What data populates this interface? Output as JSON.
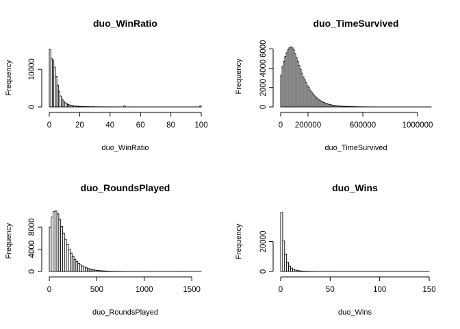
{
  "chart_data": [
    {
      "type": "bar",
      "title": "duo_WinRatio",
      "xlabel": "duo_WinRatio",
      "ylabel": "Frequency",
      "xlim": [
        0,
        100
      ],
      "ylim": [
        0,
        15500
      ],
      "xticks": [
        "0",
        "20",
        "40",
        "60",
        "80",
        "100"
      ],
      "yticks": [
        "0",
        "10000"
      ],
      "bin_width": 1,
      "values": [
        15300,
        12800,
        12500,
        10600,
        8100,
        5800,
        4200,
        2900,
        2100,
        1500,
        1100,
        820,
        640,
        500,
        400,
        320,
        260,
        210,
        170,
        140,
        120,
        100,
        90,
        80,
        70,
        60,
        55,
        50,
        45,
        40,
        36,
        32,
        30,
        28,
        25,
        22,
        20,
        18,
        16,
        15,
        14,
        13,
        12,
        11,
        10,
        10,
        9,
        9,
        8,
        260,
        8,
        7,
        7,
        6,
        6,
        6,
        5,
        5,
        5,
        5,
        5,
        4,
        4,
        4,
        4,
        4,
        4,
        4,
        3,
        3,
        3,
        3,
        3,
        3,
        3,
        3,
        3,
        3,
        3,
        3,
        3,
        3,
        3,
        3,
        3,
        3,
        3,
        3,
        3,
        3,
        3,
        3,
        3,
        3,
        3,
        3,
        3,
        3,
        3,
        280
      ]
    },
    {
      "type": "bar",
      "title": "duo_TimeSurvived",
      "xlabel": "duo_TimeSurvived",
      "ylabel": "Frequency",
      "xlim": [
        0,
        1100000
      ],
      "ylim": [
        0,
        6300
      ],
      "xticks": [
        "0",
        "200000",
        "600000",
        "1000000"
      ],
      "yticks": [
        "0",
        "2000",
        "4000",
        "6000"
      ],
      "bin_width": 10000,
      "values": [
        3300,
        4200,
        4700,
        5200,
        5600,
        5900,
        6100,
        6200,
        6100,
        5900,
        5500,
        5100,
        4700,
        4300,
        3900,
        3500,
        3100,
        2800,
        2500,
        2200,
        2000,
        1750,
        1550,
        1350,
        1200,
        1050,
        920,
        800,
        700,
        610,
        530,
        460,
        400,
        350,
        300,
        260,
        225,
        195,
        170,
        150,
        130,
        115,
        100,
        88,
        78,
        68,
        60,
        53,
        46,
        40,
        36,
        32,
        28,
        25,
        22,
        19,
        17,
        15,
        13,
        12,
        10,
        9,
        8,
        7,
        6,
        5,
        5,
        4,
        4,
        3,
        3,
        3,
        2,
        2,
        2,
        2,
        2,
        1,
        1,
        1,
        1,
        1,
        1,
        1,
        1,
        1,
        1,
        1,
        1,
        1,
        1,
        1,
        1,
        1,
        1,
        1,
        1,
        1,
        1,
        1,
        1,
        1,
        1,
        1,
        1,
        1,
        1,
        1,
        1,
        1
      ]
    },
    {
      "type": "bar",
      "title": "duo_RoundsPlayed",
      "xlabel": "duo_RoundsPlayed",
      "ylabel": "Frequency",
      "xlim": [
        0,
        1600
      ],
      "ylim": [
        0,
        11000
      ],
      "xticks": [
        "0",
        "500",
        "1000",
        "1500"
      ],
      "yticks": [
        "0",
        "4000",
        "8000"
      ],
      "bin_width": 20,
      "values": [
        8000,
        9800,
        10800,
        10900,
        10400,
        9400,
        8100,
        6900,
        5800,
        4900,
        4000,
        3300,
        2700,
        2200,
        1800,
        1450,
        1200,
        980,
        800,
        650,
        520,
        420,
        340,
        280,
        230,
        190,
        150,
        120,
        100,
        80,
        65,
        52,
        42,
        34,
        28,
        22,
        18,
        15,
        12,
        10,
        8,
        7,
        6,
        5,
        4,
        4,
        3,
        3,
        2,
        2,
        2,
        2,
        1,
        1,
        1,
        1,
        1,
        1,
        1,
        1,
        1,
        1,
        1,
        1,
        1,
        1,
        1,
        1,
        1,
        1,
        1,
        1,
        1,
        1,
        1,
        1,
        1,
        1,
        1,
        1
      ]
    },
    {
      "type": "bar",
      "title": "duo_Wins",
      "xlabel": "duo_Wins",
      "ylabel": "Frequency",
      "xlim": [
        0,
        150
      ],
      "ylim": [
        0,
        40000
      ],
      "xticks": [
        "0",
        "50",
        "100",
        "150"
      ],
      "yticks": [
        "0",
        "20000"
      ],
      "bin_width": 2,
      "values": [
        39500,
        20500,
        11500,
        6200,
        3600,
        2200,
        1400,
        900,
        600,
        420,
        300,
        210,
        150,
        110,
        80,
        60,
        45,
        34,
        26,
        20,
        15,
        12,
        10,
        8,
        6,
        5,
        4,
        3,
        3,
        2,
        2,
        2,
        2,
        1,
        1,
        1,
        1,
        1,
        1,
        1,
        1,
        1,
        1,
        1,
        1,
        1,
        1,
        1,
        1,
        1,
        1,
        1,
        1,
        1,
        1,
        1,
        1,
        1,
        1,
        1,
        1,
        1,
        1,
        1,
        1,
        1,
        1,
        1,
        1,
        1,
        1,
        1,
        1,
        1,
        1
      ]
    }
  ]
}
